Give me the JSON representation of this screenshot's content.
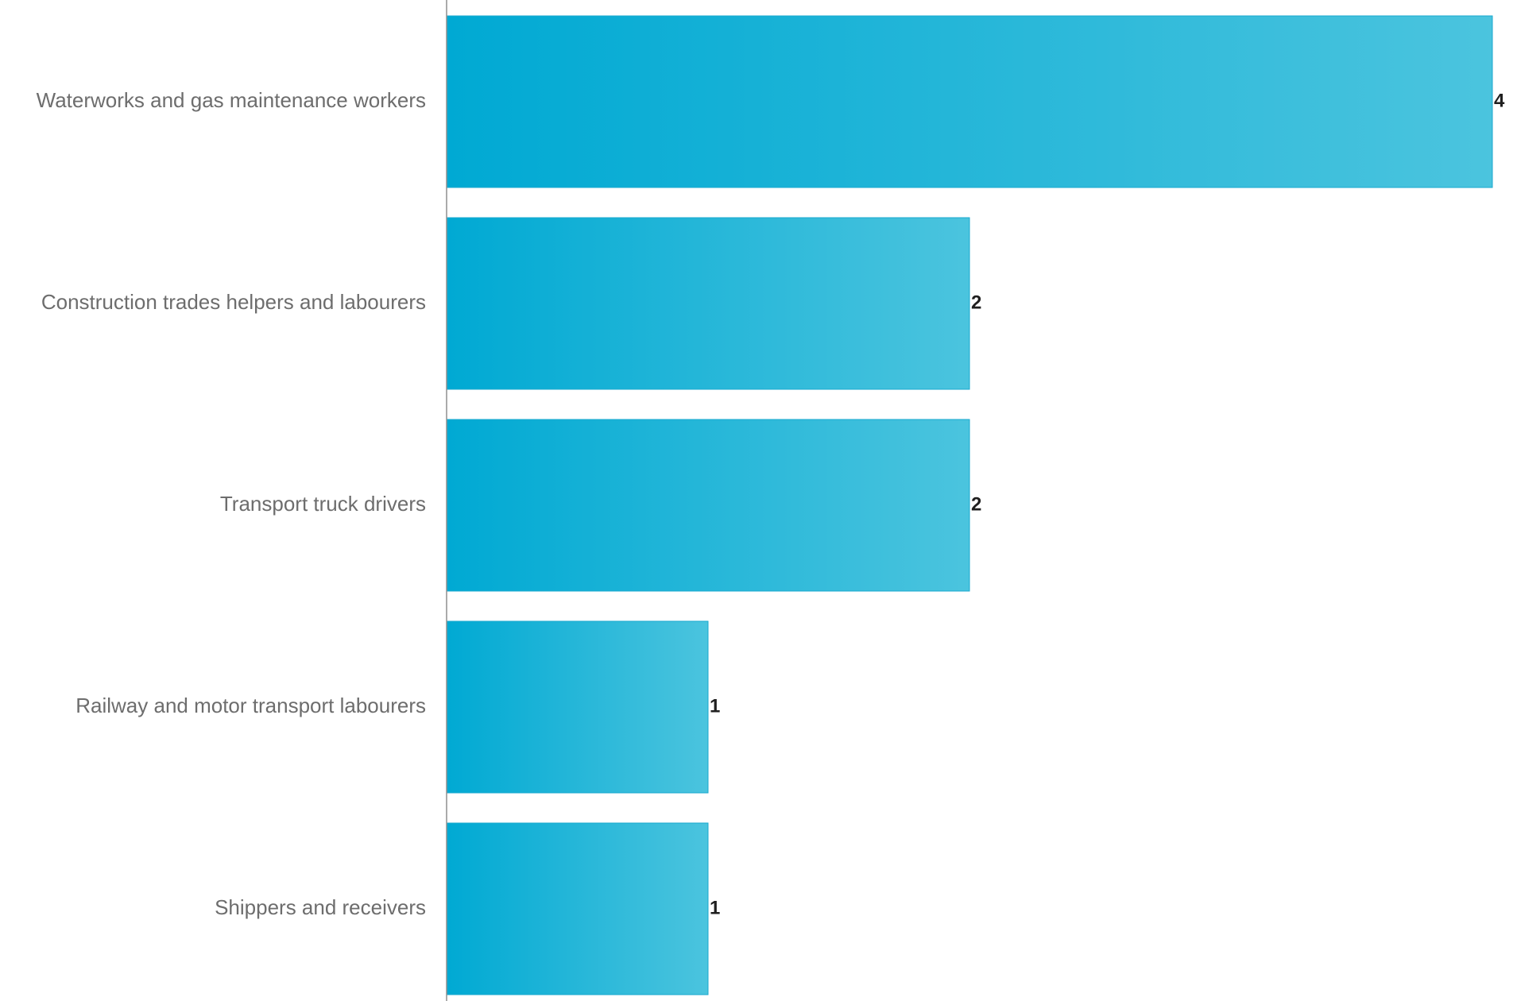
{
  "colors": {
    "bar_start": "#00a9d3",
    "bar_end": "#4bc4de",
    "axis": "#8f8f8f",
    "category_text": "#6d6d6d",
    "value_text": "#1f1f1f"
  },
  "chart_data": {
    "type": "bar",
    "orientation": "horizontal",
    "categories": [
      "Waterworks and gas maintenance workers",
      "Construction trades helpers and labourers",
      "Transport truck drivers",
      "Railway and motor transport labourers",
      "Shippers and receivers"
    ],
    "values": [
      4,
      2,
      2,
      1,
      1
    ],
    "title": "",
    "xlabel": "",
    "ylabel": "",
    "xlim": [
      0,
      4
    ],
    "grid": false,
    "legend": "none"
  }
}
